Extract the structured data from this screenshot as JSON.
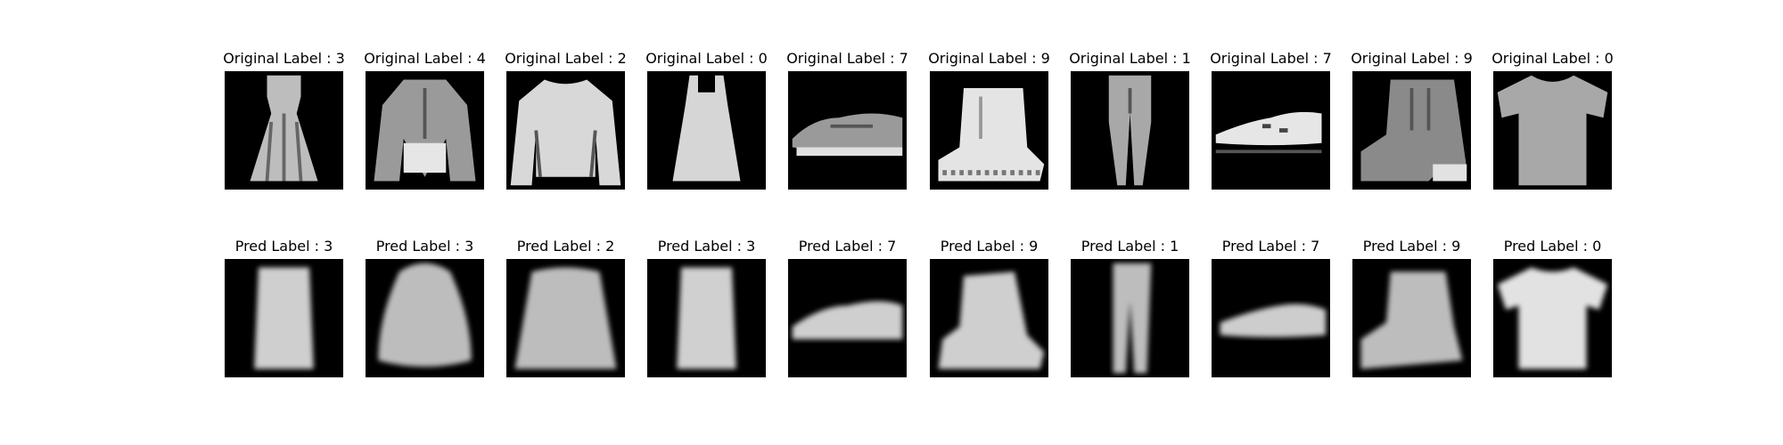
{
  "rows": [
    {
      "name": "original",
      "items": [
        {
          "title": "Original Label : 3",
          "item": "dress"
        },
        {
          "title": "Original Label : 4",
          "item": "coat"
        },
        {
          "title": "Original Label : 2",
          "item": "pullover"
        },
        {
          "title": "Original Label : 0",
          "item": "top"
        },
        {
          "title": "Original Label : 7",
          "item": "sneaker"
        },
        {
          "title": "Original Label : 9",
          "item": "boot"
        },
        {
          "title": "Original Label : 1",
          "item": "trouser"
        },
        {
          "title": "Original Label : 7",
          "item": "sneaker2"
        },
        {
          "title": "Original Label : 9",
          "item": "boot2"
        },
        {
          "title": "Original Label : 0",
          "item": "tshirt"
        }
      ]
    },
    {
      "name": "predicted",
      "items": [
        {
          "title": "Pred Label : 3",
          "item": "dress"
        },
        {
          "title": "Pred Label : 3",
          "item": "coat"
        },
        {
          "title": "Pred Label : 2",
          "item": "pullover"
        },
        {
          "title": "Pred Label : 3",
          "item": "top"
        },
        {
          "title": "Pred Label : 7",
          "item": "sneaker"
        },
        {
          "title": "Pred Label : 9",
          "item": "boot"
        },
        {
          "title": "Pred Label : 1",
          "item": "trouser"
        },
        {
          "title": "Pred Label : 7",
          "item": "sneaker2"
        },
        {
          "title": "Pred Label : 9",
          "item": "boot2"
        },
        {
          "title": "Pred Label : 0",
          "item": "tshirt"
        }
      ]
    }
  ]
}
